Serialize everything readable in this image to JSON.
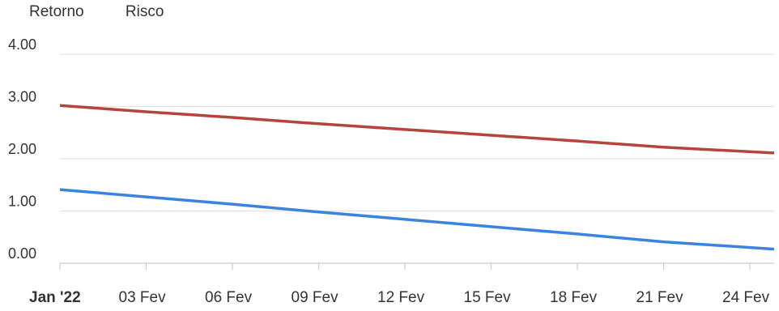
{
  "chart_data": {
    "type": "line",
    "title": "",
    "xlabel": "",
    "ylabel": "",
    "x": [
      "Jan '22",
      "03 Fev",
      "06 Fev",
      "09 Fev",
      "12 Fev",
      "15 Fev",
      "18 Fev",
      "21 Fev",
      "24 Fev"
    ],
    "series": [
      {
        "name": "Retorno",
        "color": "#b5443d",
        "values": [
          3.02,
          2.9,
          2.79,
          2.67,
          2.56,
          2.45,
          2.34,
          2.22,
          2.11
        ]
      },
      {
        "name": "Risco",
        "color": "#3a84e0",
        "values": [
          1.41,
          1.27,
          1.13,
          0.98,
          0.84,
          0.7,
          0.56,
          0.41,
          0.27
        ]
      }
    ],
    "yticks": [
      "0.00",
      "1.00",
      "2.00",
      "3.00",
      "4.00"
    ],
    "ylim": [
      0,
      4
    ],
    "grid": true,
    "legend_position": "top-left"
  }
}
